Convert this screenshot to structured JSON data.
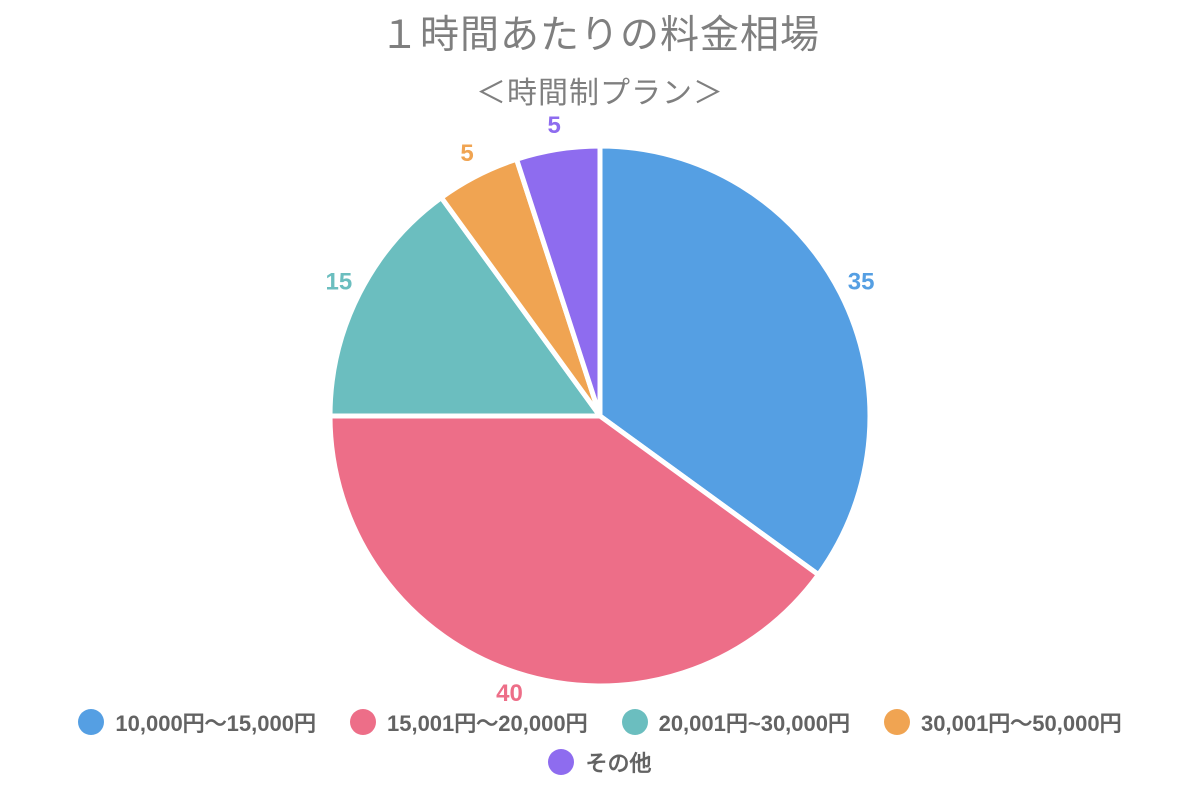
{
  "title": "１時間あたりの料金相場",
  "subtitle": "＜時間制プラン＞",
  "chart_data": {
    "type": "pie",
    "title": "１時間あたりの料金相場",
    "subtitle": "＜時間制プラン＞",
    "start_angle_deg": 0,
    "direction": "clockwise",
    "legend_position": "bottom",
    "value_labels": "outside, colored to match slice",
    "slice_border_color": "#ffffff",
    "total": 100,
    "slices": [
      {
        "label": "10,000円〜15,000円",
        "value": 35,
        "color": "#559fe3"
      },
      {
        "label": "15,001円〜20,000円",
        "value": 40,
        "color": "#ed6e88"
      },
      {
        "label": "20,001円~30,000円",
        "value": 15,
        "color": "#6bbebf"
      },
      {
        "label": "30,001円〜50,000円",
        "value": 5,
        "color": "#f0a452"
      },
      {
        "label": "その他",
        "value": 5,
        "color": "#8e6cef"
      }
    ]
  },
  "style": {
    "title_color": "#7f7f7f",
    "legend_text_color": "#636363",
    "background": "#ffffff"
  }
}
